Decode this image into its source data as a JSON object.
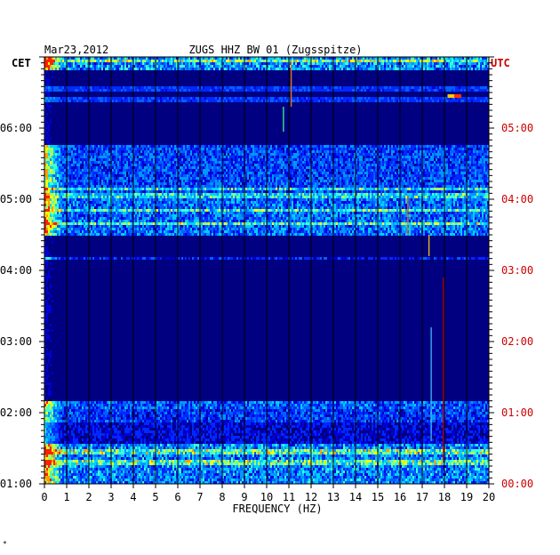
{
  "chart_data": {
    "type": "heatmap",
    "date": "Mar23,2012",
    "title": "ZUGS HHZ BW 01 (Zugsspitze)",
    "left_tz": "CET",
    "right_tz": "UTC",
    "xlabel": "FREQUENCY (HZ)",
    "xlim": [
      0,
      20
    ],
    "x_ticks": [
      "0",
      "1",
      "2",
      "3",
      "4",
      "5",
      "6",
      "7",
      "8",
      "9",
      "10",
      "11",
      "12",
      "13",
      "14",
      "15",
      "16",
      "17",
      "18",
      "19",
      "20"
    ],
    "left_ticks": [
      "06:00",
      "05:00",
      "04:00",
      "03:00",
      "02:00",
      "01:00"
    ],
    "right_ticks": [
      "05:00",
      "04:00",
      "03:00",
      "02:00",
      "01:00",
      "00:00"
    ],
    "hours_span": [
      0,
      6
    ],
    "grid": true,
    "colors": {
      "background": "#000080",
      "axis": "#000000",
      "utc_text": "#cc0000"
    },
    "quiet_bands_hours": [
      [
        1.8,
        2.0
      ],
      [
        2.05,
        3.15
      ],
      [
        3.2,
        3.5
      ],
      [
        4.75,
        4.95
      ],
      [
        4.95,
        5.75
      ],
      [
        5.75,
        5.82
      ]
    ],
    "active_bands_hours": [
      {
        "from": 0.0,
        "to": 0.55,
        "level": 0.75
      },
      {
        "from": 0.55,
        "to": 0.85,
        "level": 0.4
      },
      {
        "from": 0.85,
        "to": 1.05,
        "level": 0.55
      },
      {
        "from": 1.05,
        "to": 1.15,
        "level": 0.65
      },
      {
        "from": 3.15,
        "to": 3.2,
        "level": 0.45
      },
      {
        "from": 3.5,
        "to": 4.0,
        "level": 0.7
      },
      {
        "from": 4.0,
        "to": 4.75,
        "level": 0.6
      },
      {
        "from": 5.82,
        "to": 6.0,
        "level": 0.8
      }
    ],
    "strong_rows_hours": [
      0.3,
      0.45,
      3.65,
      3.85,
      4.05,
      4.15,
      5.4,
      5.55,
      5.95
    ],
    "vertical_streaks": [
      {
        "hz": 17.95,
        "from": 0.3,
        "to": 2.9,
        "color": "#c00000"
      },
      {
        "hz": 17.4,
        "from": 0.6,
        "to": 2.2,
        "color": "#40c0ff"
      },
      {
        "hz": 17.3,
        "from": 3.2,
        "to": 3.5,
        "color": "#ffd000"
      },
      {
        "hz": 16.35,
        "from": 3.5,
        "to": 4.05,
        "color": "#ff6000"
      },
      {
        "hz": 11.1,
        "from": 5.3,
        "to": 5.95,
        "color": "#ff8000"
      },
      {
        "hz": 10.75,
        "from": 4.95,
        "to": 5.3,
        "color": "#40ff80"
      }
    ],
    "hot_spots": [
      {
        "hz": 18.3,
        "hour": 5.45,
        "color": "#ffcc00"
      },
      {
        "hz": 18.6,
        "hour": 5.45,
        "color": "#ff3300"
      }
    ]
  },
  "footer_mark": "*"
}
